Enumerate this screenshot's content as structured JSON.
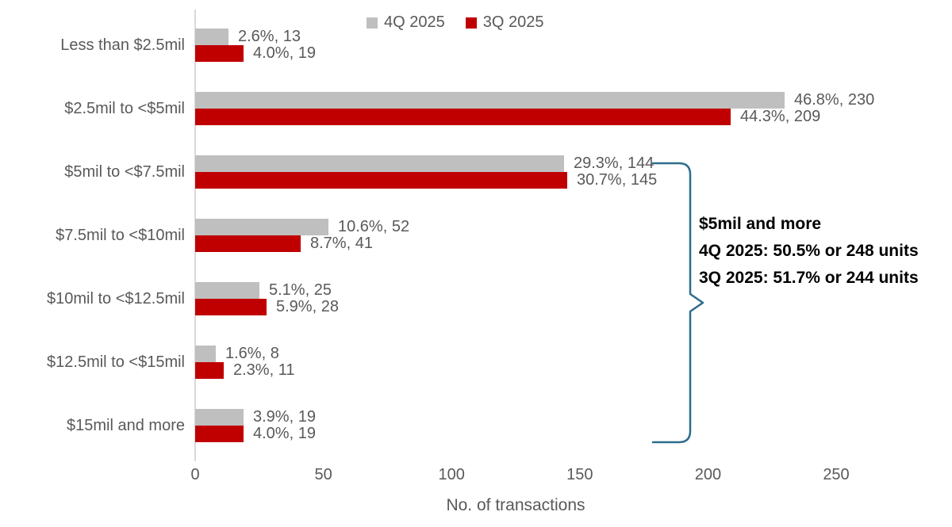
{
  "chart_data": {
    "type": "bar",
    "orientation": "horizontal",
    "xlabel": "No. of transactions",
    "x_ticks": [
      0,
      50,
      100,
      150,
      200,
      250
    ],
    "xlim": [
      0,
      280
    ],
    "grid": false,
    "legend_position": "top",
    "categories": [
      "Less than $2.5mil",
      "$2.5mil to <$5mil",
      "$5mil to <$7.5mil",
      "$7.5mil to <$10mil",
      "$10mil to <$12.5mil",
      "$12.5mil to <$15mil",
      "$15mil and more"
    ],
    "series": [
      {
        "name": "4Q 2025",
        "color": "#BFBFBF",
        "values": [
          13,
          230,
          144,
          52,
          25,
          8,
          19
        ],
        "percentages": [
          2.6,
          46.8,
          29.3,
          10.6,
          5.1,
          1.6,
          3.9
        ],
        "data_labels": [
          "2.6%, 13",
          "46.8%, 230",
          "29.3%, 144",
          "10.6%, 52",
          "5.1%, 25",
          "1.6%, 8",
          "3.9%, 19"
        ]
      },
      {
        "name": "3Q 2025",
        "color": "#C00000",
        "values": [
          19,
          209,
          145,
          41,
          28,
          11,
          19
        ],
        "percentages": [
          4.0,
          44.3,
          30.7,
          8.7,
          5.9,
          2.3,
          4.0
        ],
        "data_labels": [
          "4.0%, 19",
          "44.3%, 209",
          "30.7%, 145",
          "8.7%, 41",
          "5.9%, 28",
          "2.3%, 11",
          "4.0%, 19"
        ]
      }
    ],
    "annotation": {
      "title": "$5mil and more",
      "line_4q": "4Q 2025: 50.5% or 248 units",
      "line_3q": "3Q 2025: 51.7% or 244 units",
      "bracket_color": "#2C6D8D"
    },
    "text_color": "#595959",
    "axis_line_color": "#D9D9D9"
  }
}
